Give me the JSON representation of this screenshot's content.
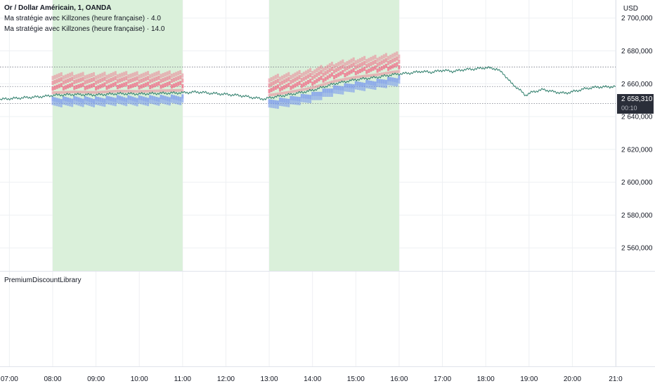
{
  "legend": {
    "title": "Or / Dollar Américain, 1, OANDA",
    "indicators": [
      "Ma stratégie avec Killzones (heure française) · 4.0",
      "Ma stratégie avec Killzones (heure française) · 14.0"
    ]
  },
  "lower_pane": {
    "label": "PremiumDiscountLibrary"
  },
  "currency_button": "USD",
  "last_price": {
    "value": "2 658,310",
    "countdown": "00:10"
  },
  "colors": {
    "line": "#2d7d6a",
    "killzone": "#daf0da",
    "sell_marker": "#f06a85",
    "buy_marker": "#6f8ff0",
    "dotted": "#787b86",
    "grid": "#eef0f3"
  },
  "chart_data": {
    "type": "line",
    "title": "Or / Dollar Américain, 1, OANDA",
    "x_ticks": [
      "07:00",
      "08:00",
      "09:00",
      "10:00",
      "11:00",
      "12:00",
      "13:00",
      "14:00",
      "15:00",
      "16:00",
      "17:00",
      "18:00",
      "19:00",
      "20:00",
      "21:0"
    ],
    "y_ticks": [
      "2 700,000",
      "2 680,000",
      "2 660,000",
      "2 640,000",
      "2 620,000",
      "2 600,000",
      "2 580,000",
      "2 560,000"
    ],
    "ylim": [
      2546,
      2711
    ],
    "xlim": [
      "06:47",
      "21:00"
    ],
    "killzones": [
      [
        "08:00",
        "11:00"
      ],
      [
        "13:00",
        "16:00"
      ]
    ],
    "horizontal_levels": [
      2670.2,
      2658.31,
      2648.0
    ],
    "series": [
      {
        "points": [
          [
            "06:47",
            2650.5
          ],
          [
            "07:00",
            2650.9
          ],
          [
            "07:20",
            2651.5
          ],
          [
            "07:40",
            2652.0
          ],
          [
            "07:55",
            2652.6
          ],
          [
            "08:00",
            2653.0
          ],
          [
            "08:30",
            2653.5
          ],
          [
            "09:00",
            2653.2
          ],
          [
            "09:30",
            2654.0
          ],
          [
            "10:00",
            2653.8
          ],
          [
            "10:30",
            2654.2
          ],
          [
            "11:00",
            2654.5
          ],
          [
            "11:20",
            2655.0
          ],
          [
            "11:40",
            2654.2
          ],
          [
            "12:00",
            2653.6
          ],
          [
            "12:20",
            2652.8
          ],
          [
            "12:40",
            2651.4
          ],
          [
            "12:55",
            2650.6
          ],
          [
            "13:00",
            2651.5
          ],
          [
            "13:30",
            2653.5
          ],
          [
            "14:00",
            2656.0
          ],
          [
            "14:30",
            2660.0
          ],
          [
            "15:00",
            2662.5
          ],
          [
            "15:30",
            2664.0
          ],
          [
            "15:50",
            2665.5
          ],
          [
            "16:00",
            2666.0
          ],
          [
            "16:15",
            2666.5
          ],
          [
            "16:30",
            2667.5
          ],
          [
            "16:45",
            2667.0
          ],
          [
            "17:00",
            2668.2
          ],
          [
            "17:15",
            2667.5
          ],
          [
            "17:30",
            2668.6
          ],
          [
            "17:45",
            2669.0
          ],
          [
            "18:00",
            2669.8
          ],
          [
            "18:15",
            2669.0
          ],
          [
            "18:25",
            2666.0
          ],
          [
            "18:35",
            2660.5
          ],
          [
            "18:45",
            2657.0
          ],
          [
            "18:55",
            2653.0
          ],
          [
            "19:05",
            2655.0
          ],
          [
            "19:20",
            2656.5
          ],
          [
            "19:35",
            2655.0
          ],
          [
            "19:50",
            2654.2
          ],
          [
            "20:05",
            2655.6
          ],
          [
            "20:20",
            2657.2
          ],
          [
            "20:35",
            2658.0
          ],
          [
            "20:50",
            2658.1
          ],
          [
            "21:00",
            2658.3
          ]
        ]
      }
    ]
  }
}
